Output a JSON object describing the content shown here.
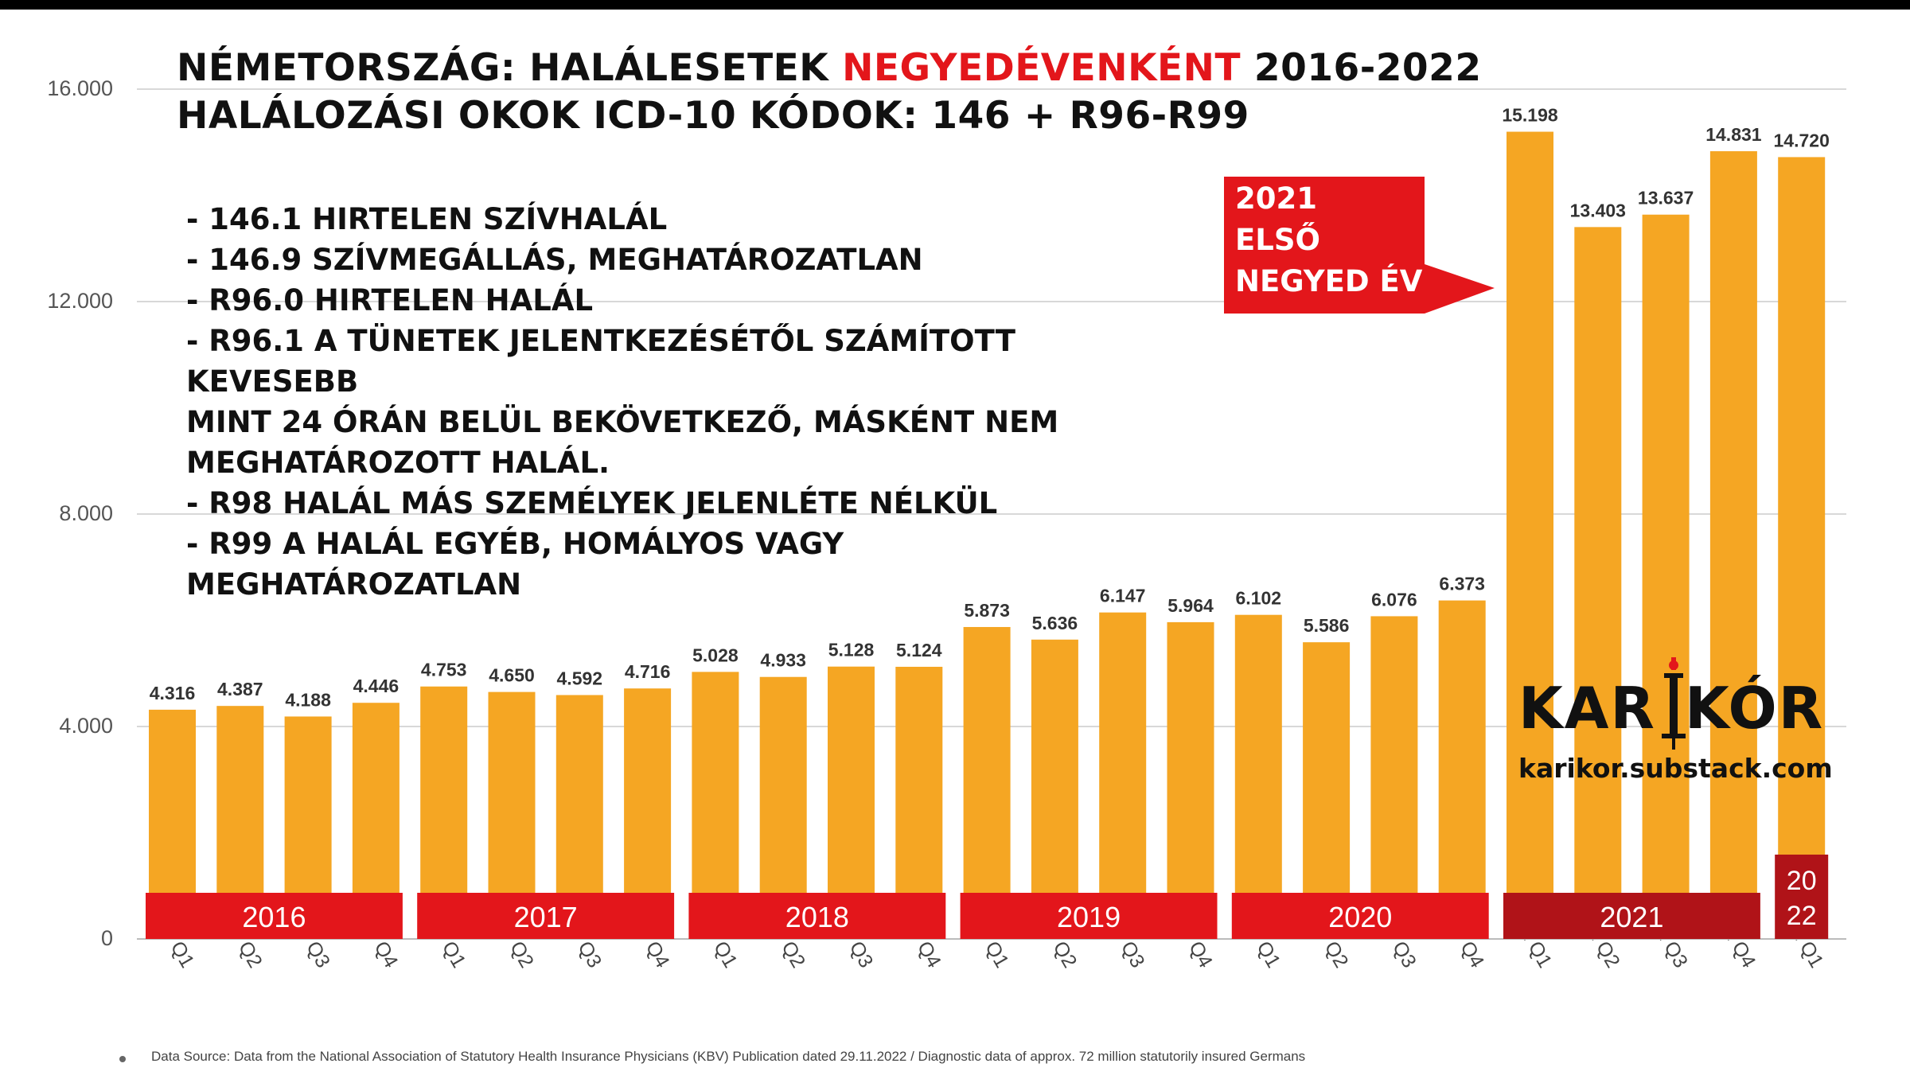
{
  "title": {
    "line1_pre": "NÉMETORSZÁG: HALÁLESETEK ",
    "line1_highlight": "NEGYEDÉVENKÉNT",
    "line1_post": " 2016-2022",
    "line2": "HALÁLOZÁSI OKOK ICD-10 KÓDOK: 146 + R96-R99"
  },
  "codes": [
    "- 146.1 HIRTELEN SZÍVHALÁL",
    "- 146.9 SZÍVMEGÁLLÁS, MEGHATÁROZATLAN",
    "- R96.0 HIRTELEN HALÁL",
    "- R96.1 A TÜNETEK JELENTKEZÉSÉTŐL SZÁMÍTOTT KEVESEBB",
    "MINT 24 ÓRÁN BELÜL BEKÖVETKEZŐ, MÁSKÉNT NEM",
    "MEGHATÁROZOTT HALÁL.",
    "- R98 HALÁL MÁS SZEMÉLYEK JELENLÉTE NÉLKÜL",
    "- R99 A HALÁL EGYÉB, HOMÁLYOS VAGY MEGHATÁROZATLAN"
  ],
  "callout": [
    "2021",
    "ELSŐ",
    "NEGYED ÉV"
  ],
  "brand": {
    "name": "KARIKÓR",
    "url": "karikor.substack.com"
  },
  "source": "Data Source: Data from the National Association of Statutory Health Insurance Physicians (KBV) Publication dated 29.11.2022 / Diagnostic data of approx. 72 million statutorily insured Germans",
  "colors": {
    "bar": "#f5a623",
    "year_band": "#e3161b",
    "year_band_2021": "#b01318",
    "grid": "#cccccc",
    "highlight_text": "#e3161b"
  },
  "chart_data": {
    "type": "bar",
    "categories": [
      "2016 Q1",
      "2016 Q2",
      "2016 Q3",
      "2016 Q4",
      "2017 Q1",
      "2017 Q2",
      "2017 Q3",
      "2017 Q4",
      "2018 Q1",
      "2018 Q2",
      "2018 Q3",
      "2018 Q4",
      "2019 Q1",
      "2019 Q2",
      "2019 Q3",
      "2019 Q4",
      "2020 Q1",
      "2020 Q2",
      "2020 Q3",
      "2020 Q4",
      "2021 Q1",
      "2021 Q2",
      "2021 Q3",
      "2021 Q4",
      "2022 Q1"
    ],
    "values": [
      4316,
      4387,
      4188,
      4446,
      4753,
      4650,
      4592,
      4716,
      5028,
      4933,
      5128,
      5124,
      5873,
      5636,
      6147,
      5964,
      6102,
      5586,
      6076,
      6373,
      15198,
      13403,
      13637,
      14831,
      14720
    ],
    "value_labels": [
      "4.316",
      "4.387",
      "4.188",
      "4.446",
      "4.753",
      "4.650",
      "4.592",
      "4.716",
      "5.028",
      "4.933",
      "5.128",
      "5.124",
      "5.873",
      "5.636",
      "6.147",
      "5.964",
      "6.102",
      "5.586",
      "6.076",
      "6.373",
      "15.198",
      "13.403",
      "13.637",
      "14.831",
      "14.720"
    ],
    "ylim": [
      0,
      16000
    ],
    "yticks": [
      0,
      4000,
      8000,
      12000,
      16000
    ],
    "ytick_labels": [
      "0",
      "4.000",
      "8.000",
      "12.000",
      "16.000"
    ],
    "grid": true,
    "year_groups": [
      {
        "label": "2016",
        "start": 0,
        "end": 3
      },
      {
        "label": "2017",
        "start": 4,
        "end": 7
      },
      {
        "label": "2018",
        "start": 8,
        "end": 11
      },
      {
        "label": "2019",
        "start": 12,
        "end": 15
      },
      {
        "label": "2020",
        "start": 16,
        "end": 19
      },
      {
        "label": "2021",
        "start": 20,
        "end": 23
      },
      {
        "label_lines": [
          "20",
          "22"
        ],
        "start": 24,
        "end": 24
      }
    ]
  }
}
